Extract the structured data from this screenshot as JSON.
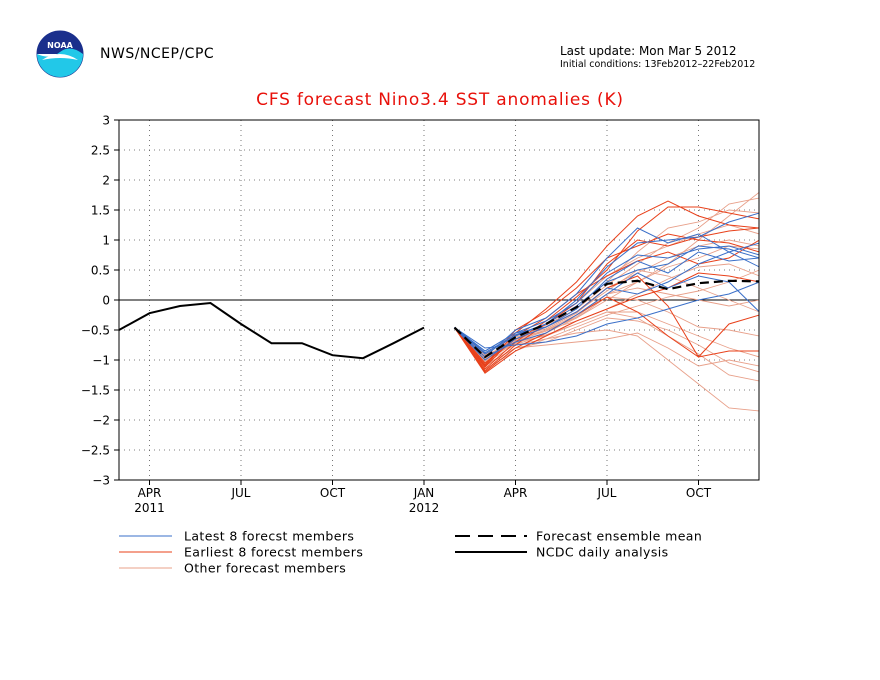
{
  "header": {
    "agency": "NWS/NCEP/CPC",
    "last_update": "Last update: Mon Mar 5 2012",
    "initial_conditions": "Initial conditions: 13Feb2012–22Feb2012",
    "logo_text": "NOAA"
  },
  "colors": {
    "title": "#e8100a",
    "latest": "#3a6fc8",
    "earliest": "#e8401a",
    "other": "#e8a08a",
    "analysis": "#000000",
    "ensemble_mean": "#000000",
    "logo_blue": "#1a2f8c",
    "logo_cyan": "#22c8e8"
  },
  "chart_data": {
    "type": "line",
    "title": "CFS forecast Nino3.4 SST anomalies (K)",
    "ylim": [
      -3,
      3
    ],
    "yticks": [
      3,
      2.5,
      2,
      1.5,
      1,
      0.5,
      0,
      -0.5,
      -1,
      -1.5,
      -2,
      -2.5,
      -3
    ],
    "ytick_labels": [
      "3",
      "2.5",
      "2",
      "1.5",
      "1",
      "0.5",
      "0",
      "−0.5",
      "−1",
      "−1.5",
      "−2",
      "−2.5",
      "−3"
    ],
    "x_months": [
      "Mar 2011",
      "Apr 2011",
      "May 2011",
      "Jun 2011",
      "Jul 2011",
      "Aug 2011",
      "Sep 2011",
      "Oct 2011",
      "Nov 2011",
      "Dec 2011",
      "Jan 2012",
      "Feb 2012",
      "Mar 2012",
      "Apr 2012",
      "May 2012",
      "Jun 2012",
      "Jul 2012",
      "Aug 2012",
      "Sep 2012",
      "Oct 2012",
      "Nov 2012"
    ],
    "xtick_labels": [
      {
        "month_index": 1,
        "label": "APR",
        "year": "2011"
      },
      {
        "month_index": 4,
        "label": "JUL",
        "year": ""
      },
      {
        "month_index": 7,
        "label": "OCT",
        "year": ""
      },
      {
        "month_index": 10,
        "label": "JAN",
        "year": "2012"
      },
      {
        "month_index": 13,
        "label": "APR",
        "year": ""
      },
      {
        "month_index": 16,
        "label": "JUL",
        "year": ""
      },
      {
        "month_index": 19,
        "label": "OCT",
        "year": ""
      }
    ],
    "grid": true,
    "zero_line": true,
    "legend": {
      "placement": "bottom",
      "entries": [
        {
          "key": "latest",
          "label": "Latest 8 forecst members",
          "style": "thin"
        },
        {
          "key": "earliest",
          "label": "Earliest 8 forecst members",
          "style": "thin"
        },
        {
          "key": "other",
          "label": "Other forecast members",
          "style": "thin"
        },
        {
          "key": "ensemble_mean",
          "label": "Forecast ensemble mean",
          "style": "dashed"
        },
        {
          "key": "analysis",
          "label": "NCDC daily analysis",
          "style": "thick"
        }
      ]
    },
    "analysis": {
      "name": "NCDC daily analysis",
      "x_start": -1,
      "values": [
        -0.8,
        -0.5,
        -0.22,
        -0.1,
        -0.05,
        -0.4,
        -0.72,
        -0.72,
        -0.92,
        -0.97,
        -0.72,
        -0.46
      ]
    },
    "ensemble_mean": {
      "name": "Forecast ensemble mean",
      "x_start": 11,
      "values": [
        -0.46,
        -0.95,
        -0.62,
        -0.4,
        -0.12,
        0.27,
        0.32,
        0.18,
        0.28,
        0.32,
        0.31
      ]
    },
    "members": {
      "latest": [
        [
          -0.46,
          -0.85,
          -0.55,
          -0.35,
          -0.05,
          0.45,
          0.75,
          0.7,
          0.85,
          0.9,
          0.75
        ],
        [
          -0.46,
          -0.95,
          -0.7,
          -0.55,
          -0.25,
          0.1,
          0.45,
          0.2,
          0.4,
          0.3,
          -0.2
        ],
        [
          -0.46,
          -0.9,
          -0.6,
          -0.4,
          0.0,
          0.55,
          0.95,
          1.0,
          1.05,
          1.3,
          1.45
        ],
        [
          -0.46,
          -0.8,
          -0.75,
          -0.7,
          -0.6,
          -0.4,
          -0.3,
          -0.15,
          0.0,
          0.1,
          0.3
        ],
        [
          -0.46,
          -0.95,
          -0.5,
          -0.3,
          0.1,
          0.7,
          1.2,
          0.95,
          1.1,
          0.8,
          0.55
        ],
        [
          -0.46,
          -0.85,
          -0.55,
          -0.45,
          -0.2,
          0.2,
          0.1,
          0.3,
          0.6,
          0.8,
          0.95
        ],
        [
          -0.46,
          -1.0,
          -0.65,
          -0.45,
          -0.15,
          0.35,
          0.65,
          0.45,
          0.8,
          0.65,
          0.7
        ],
        [
          -0.46,
          -0.88,
          -0.58,
          -0.4,
          -0.1,
          0.3,
          0.5,
          0.6,
          0.9,
          0.85,
          0.7
        ]
      ],
      "earliest": [
        [
          -0.46,
          -1.15,
          -0.7,
          -0.35,
          0.05,
          0.5,
          1.15,
          1.55,
          1.55,
          1.45,
          1.35
        ],
        [
          -0.46,
          -1.2,
          -0.8,
          -0.55,
          -0.25,
          0.05,
          -0.2,
          -0.6,
          -0.95,
          -0.85,
          -0.85
        ],
        [
          -0.46,
          -1.1,
          -0.55,
          -0.15,
          0.3,
          0.9,
          1.4,
          1.65,
          1.4,
          1.25,
          1.2
        ],
        [
          -0.46,
          -1.05,
          -0.65,
          -0.45,
          -0.2,
          0.2,
          0.4,
          -0.1,
          -0.95,
          -0.4,
          -0.25
        ],
        [
          -0.46,
          -1.18,
          -0.75,
          -0.4,
          -0.05,
          0.6,
          1.0,
          0.9,
          1.05,
          1.15,
          1.2
        ],
        [
          -0.46,
          -1.12,
          -0.6,
          -0.3,
          0.1,
          0.4,
          0.65,
          0.8,
          0.6,
          0.7,
          1.0
        ],
        [
          -0.46,
          -1.22,
          -0.85,
          -0.6,
          -0.35,
          -0.15,
          0.05,
          0.2,
          0.45,
          0.4,
          0.3
        ],
        [
          -0.46,
          -1.08,
          -0.5,
          -0.2,
          0.2,
          0.7,
          0.9,
          1.1,
          1.0,
          0.95,
          0.8
        ]
      ],
      "other": [
        [
          -0.46,
          -1.0,
          -0.7,
          -0.5,
          -0.3,
          0.0,
          0.3,
          0.6,
          1.0,
          1.4,
          1.8
        ],
        [
          -0.46,
          -1.1,
          -0.8,
          -0.75,
          -0.7,
          -0.65,
          -0.55,
          -0.8,
          -1.1,
          -1.0,
          -1.1
        ],
        [
          -0.46,
          -0.9,
          -0.75,
          -0.65,
          -0.55,
          -0.5,
          -0.6,
          -1.0,
          -1.4,
          -1.8,
          -1.85
        ],
        [
          -0.46,
          -1.0,
          -0.6,
          -0.4,
          -0.1,
          0.3,
          0.8,
          1.2,
          1.3,
          1.5,
          1.45
        ],
        [
          -0.46,
          -0.95,
          -0.7,
          -0.6,
          -0.4,
          -0.2,
          -0.2,
          -0.4,
          -0.6,
          -0.8,
          -0.95
        ],
        [
          -0.46,
          -1.05,
          -0.65,
          -0.5,
          -0.25,
          0.1,
          0.3,
          0.55,
          0.7,
          0.9,
          0.85
        ],
        [
          -0.46,
          -0.92,
          -0.55,
          -0.35,
          -0.05,
          0.4,
          0.7,
          0.9,
          1.1,
          1.25,
          1.1
        ],
        [
          -0.46,
          -1.15,
          -0.85,
          -0.65,
          -0.45,
          -0.25,
          -0.1,
          0.05,
          0.15,
          0.3,
          0.5
        ],
        [
          -0.46,
          -0.98,
          -0.6,
          -0.45,
          -0.2,
          0.15,
          0.5,
          0.4,
          0.2,
          0.0,
          -0.2
        ],
        [
          -0.46,
          -1.02,
          -0.72,
          -0.55,
          -0.3,
          0.05,
          0.0,
          -0.2,
          -0.45,
          -0.5,
          -0.6
        ],
        [
          -0.46,
          -0.88,
          -0.58,
          -0.42,
          -0.15,
          0.25,
          0.6,
          0.95,
          1.2,
          1.6,
          1.7
        ],
        [
          -0.46,
          -1.08,
          -0.8,
          -0.7,
          -0.5,
          -0.3,
          -0.35,
          -0.5,
          -0.75,
          -1.05,
          -1.2
        ],
        [
          -0.46,
          -0.96,
          -0.62,
          -0.48,
          -0.22,
          0.2,
          0.45,
          0.7,
          0.9,
          1.0,
          0.9
        ],
        [
          -0.46,
          -1.04,
          -0.68,
          -0.52,
          -0.28,
          0.1,
          0.2,
          0.1,
          0.0,
          -0.1,
          0.0
        ],
        [
          -0.46,
          -0.94,
          -0.66,
          -0.5,
          -0.35,
          -0.15,
          0.1,
          0.35,
          0.55,
          0.6,
          0.4
        ],
        [
          -0.46,
          -1.06,
          -0.74,
          -0.58,
          -0.4,
          -0.2,
          -0.3,
          -0.6,
          -0.9,
          -1.25,
          -1.35
        ]
      ]
    }
  }
}
